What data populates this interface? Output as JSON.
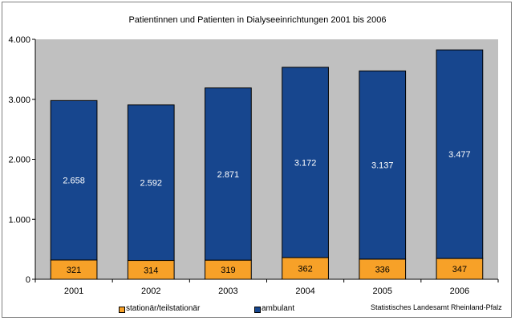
{
  "chart_data": {
    "type": "bar",
    "stacked": true,
    "title": "Patientinnen und Patienten in Dialyseeinrichtungen 2001 bis 2006",
    "categories": [
      "2001",
      "2002",
      "2003",
      "2004",
      "2005",
      "2006"
    ],
    "series": [
      {
        "name": "stationär/teilstationär",
        "values": [
          321,
          314,
          319,
          362,
          336,
          347
        ],
        "color": "#f7a128"
      },
      {
        "name": "ambulant",
        "values": [
          2658,
          2592,
          2871,
          3172,
          3137,
          3477
        ],
        "color": "#17468e"
      }
    ],
    "data_labels": {
      "stationär/teilstationär": [
        "321",
        "314",
        "319",
        "362",
        "336",
        "347"
      ],
      "ambulant": [
        "2.658",
        "2.592",
        "2.871",
        "3.172",
        "3.137",
        "3.477"
      ]
    },
    "ylim": [
      0,
      4000
    ],
    "yticks": [
      0,
      1000,
      2000,
      3000,
      4000
    ],
    "ytick_labels": [
      "0",
      "1.000",
      "2.000",
      "3.000",
      "4.000"
    ],
    "grid": false,
    "plot_background": "#c0c0c0",
    "legend_position": "bottom",
    "xlabel": "",
    "ylabel": ""
  },
  "legend": {
    "item_1": "stationär/teilstationär",
    "item_2": "ambulant"
  },
  "source_note": "Statistisches Landesamt Rheinland-Pfalz"
}
